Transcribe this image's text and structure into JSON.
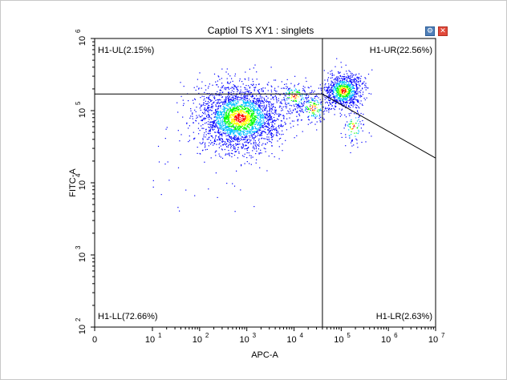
{
  "window": {
    "title": "Captiol TS XY1 : singlets",
    "settings_icon": "gear-icon",
    "close_icon": "close-icon"
  },
  "chart_data": {
    "type": "scatter",
    "title": "Captiol TS XY1 : singlets",
    "xlabel": "APC-A",
    "ylabel": "FITC-A",
    "x_scale": "biexponential",
    "y_scale": "log",
    "xlim": [
      0,
      10000000
    ],
    "ylim": [
      100,
      1000000
    ],
    "x_ticks": [
      {
        "base": "0",
        "exp": ""
      },
      {
        "base": "10",
        "exp": "1"
      },
      {
        "base": "10",
        "exp": "2"
      },
      {
        "base": "10",
        "exp": "3"
      },
      {
        "base": "10",
        "exp": "4"
      },
      {
        "base": "10",
        "exp": "5"
      },
      {
        "base": "10",
        "exp": "6"
      },
      {
        "base": "10",
        "exp": "7"
      }
    ],
    "y_ticks": [
      {
        "base": "10",
        "exp": "2"
      },
      {
        "base": "10",
        "exp": "3"
      },
      {
        "base": "10",
        "exp": "4"
      },
      {
        "base": "10",
        "exp": "5"
      },
      {
        "base": "10",
        "exp": "6"
      }
    ],
    "grid": false,
    "colormap": [
      "#0000ff",
      "#00c0ff",
      "#00ff00",
      "#ffff00",
      "#ff0000"
    ],
    "gate": {
      "vertical_x": 40000,
      "horizontal_y": 170000,
      "diagonal_start": [
        40000,
        170000
      ],
      "diagonal_end": [
        10000000,
        22000
      ]
    },
    "quadrants": {
      "UL": "H1-UL(2.15%)",
      "UR": "H1-UR(22.56%)",
      "LL": "H1-LL(72.66%)",
      "LR": "H1-LR(2.63%)"
    },
    "populations": [
      {
        "x_center": 700,
        "y_center": 80000,
        "x_spread_decades": 0.45,
        "y_spread_decades": 0.22,
        "count": 2600
      },
      {
        "x_center": 110000,
        "y_center": 190000,
        "x_spread_decades": 0.2,
        "y_spread_decades": 0.12,
        "count": 900
      },
      {
        "x_center": 10000,
        "y_center": 160000,
        "x_spread_decades": 0.2,
        "y_spread_decades": 0.1,
        "count": 180
      },
      {
        "x_center": 25000,
        "y_center": 110000,
        "x_spread_decades": 0.18,
        "y_spread_decades": 0.12,
        "count": 160
      },
      {
        "x_center": 180000,
        "y_center": 60000,
        "x_spread_decades": 0.12,
        "y_spread_decades": 0.15,
        "count": 90
      }
    ]
  }
}
